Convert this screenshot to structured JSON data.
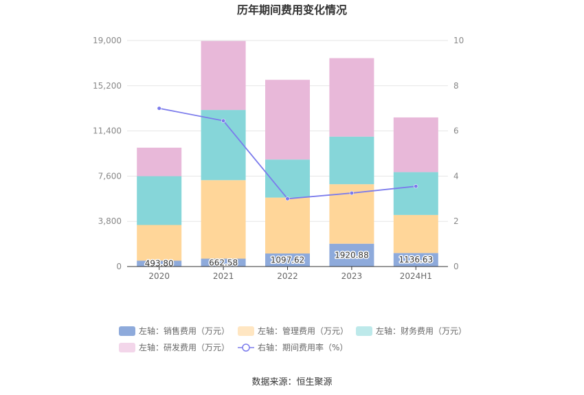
{
  "chart_data": {
    "type": "bar",
    "stacked": true,
    "title": "历年期间费用变化情况",
    "categories": [
      "2020",
      "2021",
      "2022",
      "2023",
      "2024H1"
    ],
    "left_axis": {
      "min": 0,
      "max": 19000,
      "ticks": [
        "0",
        "3,800",
        "7,600",
        "11,400",
        "15,200",
        "19,000"
      ],
      "tick_values": [
        0,
        3800,
        7600,
        11400,
        15200,
        19000
      ]
    },
    "right_axis": {
      "min": 0,
      "max": 10,
      "ticks": [
        "0",
        "2",
        "4",
        "6",
        "8",
        "10"
      ],
      "tick_values": [
        0,
        2,
        4,
        6,
        8,
        10
      ]
    },
    "series": [
      {
        "name": "左轴：销售费用（万元）",
        "axis": "left",
        "color": "#8eaadb",
        "values": [
          493.8,
          662.58,
          1097.62,
          1920.88,
          1136.63
        ],
        "labels": [
          "493.80",
          "662.58",
          "1097.62",
          "1920.88",
          "1136.63"
        ]
      },
      {
        "name": "左轴：管理费用（万元）",
        "axis": "left",
        "color": "#ffd699",
        "values": [
          3000,
          6600,
          4700,
          5000,
          3200
        ]
      },
      {
        "name": "左轴：财务费用（万元）",
        "axis": "left",
        "color": "#86d6d9",
        "values": [
          4100,
          5900,
          3200,
          4000,
          3600
        ]
      },
      {
        "name": "左轴：研发费用（万元）",
        "axis": "left",
        "color": "#e8b8d9",
        "values": [
          2400,
          5800,
          6700,
          6600,
          4600
        ]
      }
    ],
    "line": {
      "name": "右轴：期间费用率（%）",
      "axis": "right",
      "color": "#7b7bec",
      "values": [
        7.0,
        6.45,
        3.0,
        3.25,
        3.55
      ]
    },
    "legend_position": "bottom",
    "grid": true
  },
  "legend_colors": [
    "#8eaadb",
    "#ffe6c2",
    "#bde9ea",
    "#f3d6ea"
  ],
  "source": "数据来源：恒生聚源"
}
